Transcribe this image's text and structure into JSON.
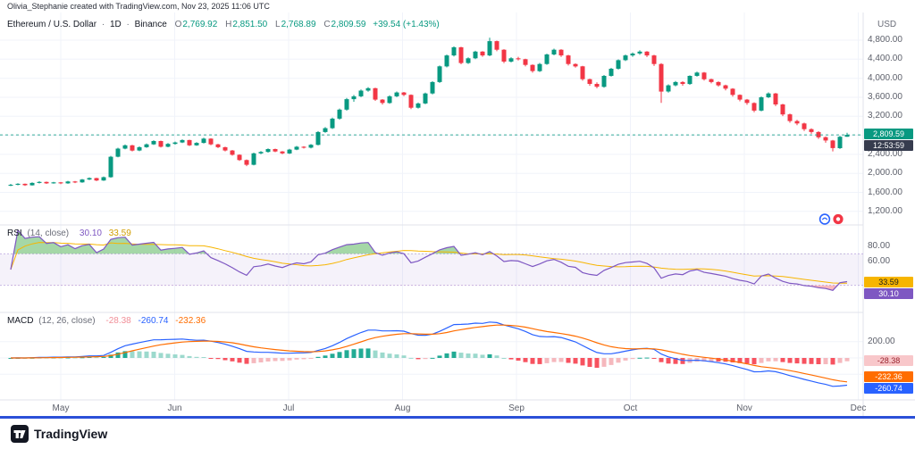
{
  "attribution": "Olivia_Stephanie created with TradingView.com, Nov 23, 2025 11:06 UTC",
  "header": {
    "symbol": "Ethereum / U.S. Dollar",
    "sep": "·",
    "interval": "1D",
    "exchange": "Binance",
    "ohlc": {
      "o_label": "O",
      "o": "2,769.92",
      "h_label": "H",
      "h": "2,851.50",
      "l_label": "L",
      "l": "2,768.89",
      "c_label": "C",
      "c": "2,809.59",
      "change": "+39.54 (+1.43%)"
    }
  },
  "axis": {
    "currency": "USD",
    "price_badge": "2,809.59",
    "countdown": "12:53:59"
  },
  "rsi_panel": {
    "title": "RSI",
    "params": "(14, close)",
    "value": "30.10",
    "ma_value": "33.59",
    "badge": "30.10",
    "ma_badge": "33.59"
  },
  "macd_panel": {
    "title": "MACD",
    "params": "(12, 26, close)",
    "hist_value": "-28.38",
    "macd_value": "-260.74",
    "signal_value": "-232.36",
    "hist_badge": "-28.38",
    "signal_badge": "-232.36",
    "macd_badge": "-260.74"
  },
  "footer": {
    "brand": "TradingView"
  },
  "chart_data": {
    "type": "candlestick",
    "title": "Ethereum / U.S. Dollar · 1D · Binance",
    "x_months": [
      "May",
      "Jun",
      "Jul",
      "Aug",
      "Sep",
      "Oct",
      "Nov",
      "Dec"
    ],
    "price_ticks": [
      {
        "v": 4800,
        "label": "4,800.00"
      },
      {
        "v": 4400,
        "label": "4,400.00"
      },
      {
        "v": 4000,
        "label": "4,000.00"
      },
      {
        "v": 3600,
        "label": "3,600.00"
      },
      {
        "v": 3200,
        "label": "3,200.00"
      },
      {
        "v": 2400,
        "label": "2,400.00"
      },
      {
        "v": 2000,
        "label": "2,000.00"
      },
      {
        "v": 1600,
        "label": "1,600.00"
      },
      {
        "v": 1200,
        "label": "1,200.00"
      }
    ],
    "price_grid": [
      4800,
      4400,
      4000,
      3600,
      3200,
      2800,
      2400,
      2000,
      1600,
      1200
    ],
    "price_range": [
      990,
      5270
    ],
    "rsi_ticks": [
      {
        "v": 80,
        "label": "80.00"
      },
      {
        "v": 60,
        "label": "60.00"
      }
    ],
    "macd_ticks": [
      {
        "v": 200,
        "label": "200.00"
      }
    ],
    "last_price": 2809.59,
    "badge_values": {
      "price": 2809.59,
      "rsi": 30.1,
      "rsi_ma": 33.59,
      "macd_hist": -28.38,
      "macd_signal": -232.36,
      "macd_line": -260.74
    },
    "indicators": {
      "rsi": {
        "period": 14,
        "ma_period": 14
      },
      "macd": {
        "fast": 12,
        "slow": 26,
        "signal": 9
      }
    },
    "legend_position": "top-left",
    "grid": true,
    "colors": {
      "up": "#089981",
      "down": "#f23645",
      "rsi": "#7e57c2",
      "rsi_ma": "#f7b500",
      "band": "#7e57c2",
      "macd": "#2962ff",
      "signal": "#ff6d00",
      "hist_pos": "#22ab94",
      "hist_pos_weak": "#9cd9cd",
      "hist_neg": "#f7525f",
      "hist_neg_weak": "#f5b8bd",
      "grid": "#f0f3fa",
      "axis_text": "#5d606b",
      "accent_line": "#2b50d8"
    },
    "candles_ohlc": [
      [
        1750,
        1778,
        1732,
        1760
      ],
      [
        1760,
        1792,
        1748,
        1780
      ],
      [
        1780,
        1786,
        1736,
        1750
      ],
      [
        1750,
        1812,
        1742,
        1800
      ],
      [
        1800,
        1834,
        1788,
        1820
      ],
      [
        1820,
        1828,
        1778,
        1790
      ],
      [
        1790,
        1822,
        1782,
        1810
      ],
      [
        1810,
        1818,
        1772,
        1790
      ],
      [
        1790,
        1842,
        1780,
        1830
      ],
      [
        1830,
        1838,
        1796,
        1810
      ],
      [
        1810,
        1882,
        1802,
        1870
      ],
      [
        1870,
        1914,
        1858,
        1900
      ],
      [
        1900,
        1908,
        1836,
        1850
      ],
      [
        1850,
        1934,
        1842,
        1920
      ],
      [
        1920,
        2368,
        1908,
        2350
      ],
      [
        2350,
        2538,
        2336,
        2520
      ],
      [
        2520,
        2606,
        2504,
        2590
      ],
      [
        2590,
        2598,
        2462,
        2480
      ],
      [
        2480,
        2566,
        2466,
        2550
      ],
      [
        2550,
        2626,
        2536,
        2610
      ],
      [
        2610,
        2696,
        2596,
        2680
      ],
      [
        2680,
        2688,
        2544,
        2560
      ],
      [
        2560,
        2636,
        2548,
        2620
      ],
      [
        2620,
        2668,
        2604,
        2650
      ],
      [
        2650,
        2716,
        2636,
        2700
      ],
      [
        2700,
        2708,
        2574,
        2590
      ],
      [
        2590,
        2656,
        2578,
        2640
      ],
      [
        2640,
        2748,
        2626,
        2730
      ],
      [
        2730,
        2738,
        2592,
        2610
      ],
      [
        2610,
        2622,
        2532,
        2550
      ],
      [
        2550,
        2560,
        2462,
        2480
      ],
      [
        2480,
        2492,
        2372,
        2390
      ],
      [
        2390,
        2400,
        2262,
        2280
      ],
      [
        2280,
        2292,
        2152,
        2180
      ],
      [
        2180,
        2436,
        2168,
        2420
      ],
      [
        2420,
        2468,
        2404,
        2450
      ],
      [
        2450,
        2526,
        2436,
        2510
      ],
      [
        2510,
        2520,
        2444,
        2460
      ],
      [
        2460,
        2470,
        2402,
        2420
      ],
      [
        2420,
        2516,
        2408,
        2500
      ],
      [
        2500,
        2576,
        2486,
        2560
      ],
      [
        2560,
        2570,
        2522,
        2540
      ],
      [
        2540,
        2616,
        2526,
        2600
      ],
      [
        2600,
        2888,
        2588,
        2870
      ],
      [
        2870,
        2972,
        2852,
        2950
      ],
      [
        2950,
        3172,
        2932,
        3150
      ],
      [
        3150,
        3362,
        3128,
        3340
      ],
      [
        3340,
        3584,
        3318,
        3560
      ],
      [
        3560,
        3648,
        3506,
        3620
      ],
      [
        3620,
        3764,
        3602,
        3740
      ],
      [
        3740,
        3814,
        3716,
        3790
      ],
      [
        3790,
        3802,
        3524,
        3550
      ],
      [
        3550,
        3562,
        3448,
        3480
      ],
      [
        3480,
        3642,
        3462,
        3620
      ],
      [
        3620,
        3722,
        3602,
        3700
      ],
      [
        3700,
        3712,
        3624,
        3650
      ],
      [
        3650,
        3662,
        3352,
        3380
      ],
      [
        3380,
        3488,
        3362,
        3470
      ],
      [
        3470,
        3698,
        3452,
        3680
      ],
      [
        3680,
        3938,
        3662,
        3920
      ],
      [
        3920,
        4268,
        3902,
        4250
      ],
      [
        4250,
        4498,
        4228,
        4480
      ],
      [
        4480,
        4672,
        4458,
        4650
      ],
      [
        4650,
        4662,
        4294,
        4320
      ],
      [
        4320,
        4438,
        4302,
        4420
      ],
      [
        4420,
        4578,
        4402,
        4560
      ],
      [
        4560,
        4572,
        4452,
        4480
      ],
      [
        4480,
        4852,
        4462,
        4780
      ],
      [
        4780,
        4792,
        4568,
        4600
      ],
      [
        4600,
        4612,
        4318,
        4350
      ],
      [
        4350,
        4442,
        4332,
        4420
      ],
      [
        4420,
        4452,
        4372,
        4400
      ],
      [
        4400,
        4412,
        4248,
        4280
      ],
      [
        4280,
        4292,
        4118,
        4150
      ],
      [
        4150,
        4322,
        4132,
        4300
      ],
      [
        4300,
        4518,
        4282,
        4500
      ],
      [
        4500,
        4622,
        4482,
        4600
      ],
      [
        4600,
        4612,
        4448,
        4480
      ],
      [
        4480,
        4492,
        4268,
        4300
      ],
      [
        4300,
        4312,
        4222,
        4250
      ],
      [
        4250,
        4262,
        3948,
        3980
      ],
      [
        3980,
        3992,
        3842,
        3880
      ],
      [
        3880,
        3912,
        3788,
        3820
      ],
      [
        3820,
        4068,
        3802,
        4050
      ],
      [
        4050,
        4218,
        4032,
        4200
      ],
      [
        4200,
        4398,
        4182,
        4380
      ],
      [
        4380,
        4498,
        4362,
        4480
      ],
      [
        4480,
        4542,
        4452,
        4520
      ],
      [
        4520,
        4586,
        4492,
        4560
      ],
      [
        4560,
        4572,
        4446,
        4480
      ],
      [
        4480,
        4492,
        4258,
        4300
      ],
      [
        4300,
        4318,
        3482,
        3720
      ],
      [
        3720,
        3872,
        3698,
        3850
      ],
      [
        3850,
        3942,
        3828,
        3920
      ],
      [
        3920,
        3938,
        3844,
        3880
      ],
      [
        3880,
        4062,
        3862,
        4050
      ],
      [
        4050,
        4138,
        4032,
        4120
      ],
      [
        4120,
        4132,
        3952,
        3980
      ],
      [
        3980,
        3992,
        3892,
        3920
      ],
      [
        3920,
        3936,
        3824,
        3850
      ],
      [
        3850,
        3864,
        3744,
        3780
      ],
      [
        3780,
        3792,
        3614,
        3650
      ],
      [
        3650,
        3662,
        3514,
        3550
      ],
      [
        3550,
        3564,
        3442,
        3480
      ],
      [
        3480,
        3494,
        3284,
        3320
      ],
      [
        3320,
        3618,
        3302,
        3600
      ],
      [
        3600,
        3702,
        3582,
        3680
      ],
      [
        3680,
        3692,
        3414,
        3450
      ],
      [
        3450,
        3464,
        3204,
        3240
      ],
      [
        3240,
        3256,
        3064,
        3100
      ],
      [
        3100,
        3126,
        3012,
        3050
      ],
      [
        3050,
        3066,
        2892,
        2930
      ],
      [
        2930,
        2946,
        2832,
        2870
      ],
      [
        2870,
        2886,
        2724,
        2760
      ],
      [
        2760,
        2776,
        2644,
        2690
      ],
      [
        2690,
        2702,
        2462,
        2530
      ],
      [
        2530,
        2788,
        2512,
        2770
      ],
      [
        2770,
        2851.5,
        2768.9,
        2809.6
      ]
    ]
  }
}
